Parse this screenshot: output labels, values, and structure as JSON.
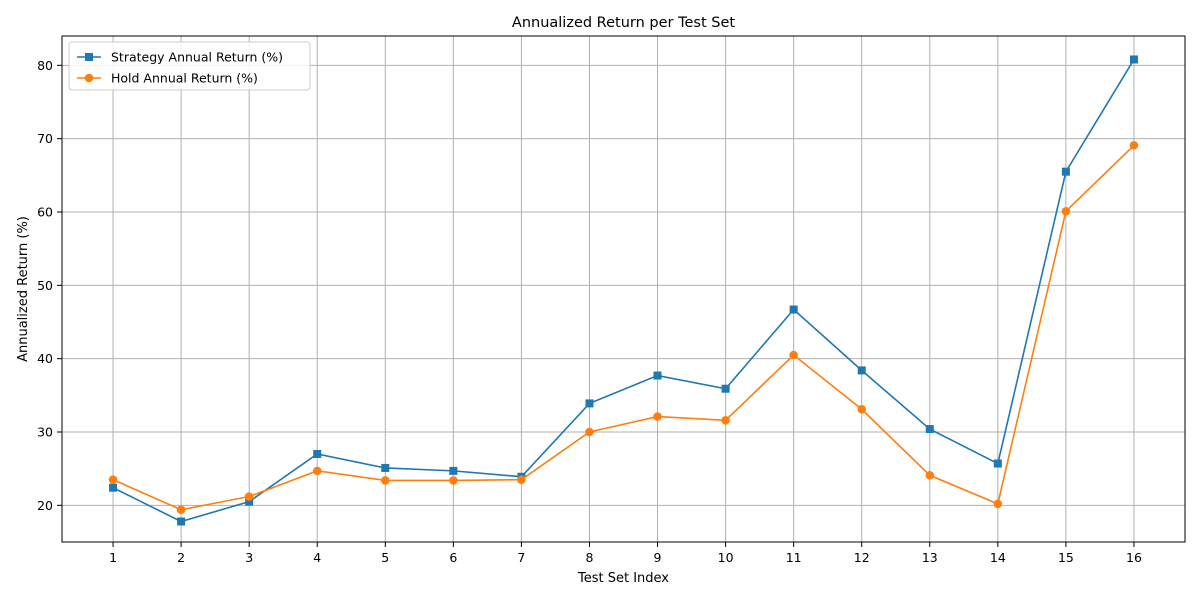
{
  "chart_data": {
    "type": "line",
    "title": "Annualized Return per Test Set",
    "xlabel": "Test Set Index",
    "ylabel": "Annualized Return (%)",
    "x": [
      1,
      2,
      3,
      4,
      5,
      6,
      7,
      8,
      9,
      10,
      11,
      12,
      13,
      14,
      15,
      16
    ],
    "x_tick_labels": [
      "1",
      "2",
      "3",
      "4",
      "5",
      "6",
      "7",
      "8",
      "9",
      "10",
      "11",
      "12",
      "13",
      "14",
      "15",
      "16"
    ],
    "xlim": [
      0.25,
      16.75
    ],
    "ylim": [
      15,
      84
    ],
    "y_ticks": [
      20,
      30,
      40,
      50,
      60,
      70,
      80
    ],
    "y_tick_labels": [
      "20",
      "30",
      "40",
      "50",
      "60",
      "70",
      "80"
    ],
    "grid": true,
    "legend_position": "upper-left",
    "series": [
      {
        "name": "Strategy Annual Return (%)",
        "color": "#1f77b4",
        "marker": "square",
        "values": [
          22.4,
          17.8,
          20.5,
          27.0,
          25.1,
          24.7,
          23.9,
          33.9,
          37.7,
          35.9,
          46.7,
          38.4,
          30.4,
          25.7,
          65.5,
          80.8
        ]
      },
      {
        "name": "Hold Annual Return (%)",
        "color": "#ff7f0e",
        "marker": "circle",
        "values": [
          23.5,
          19.4,
          21.2,
          24.7,
          23.4,
          23.4,
          23.5,
          30.0,
          32.1,
          31.6,
          40.5,
          33.1,
          24.1,
          20.2,
          60.1,
          69.1
        ]
      }
    ]
  }
}
